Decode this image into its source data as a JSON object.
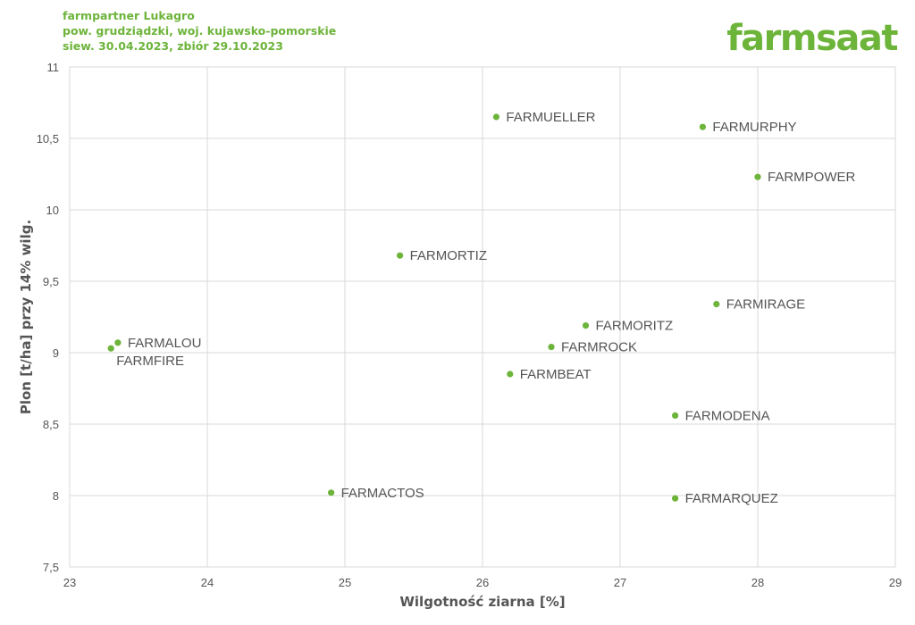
{
  "header": {
    "line1": "farmpartner Lukagro",
    "line2": "pow. grudziądzki, woj. kujawsko-pomorskie",
    "line3": "siew. 30.04.2023, zbiór 29.10.2023"
  },
  "logo": {
    "text": "farmsaat"
  },
  "colors": {
    "accent": "#6db43a",
    "grid": "#d9d9d9",
    "text": "#555555"
  },
  "chart_data": {
    "type": "scatter",
    "title": "",
    "xlabel": "Wilgotność ziarna [%]",
    "ylabel": "Plon [t/ha] przy 14% wilg.",
    "xlim": [
      23,
      29
    ],
    "ylim": [
      7.5,
      11
    ],
    "x_ticks": [
      23,
      24,
      25,
      26,
      27,
      28,
      29
    ],
    "y_ticks": [
      7.5,
      8,
      8.5,
      9,
      9.5,
      10,
      10.5,
      11
    ],
    "x_tick_labels": [
      "23",
      "24",
      "25",
      "26",
      "27",
      "28",
      "29"
    ],
    "y_tick_labels": [
      "7,5",
      "8",
      "8,5",
      "9",
      "9,5",
      "10",
      "10,5",
      "11"
    ],
    "grid": true,
    "points": [
      {
        "label": "FARMUELLER",
        "x": 26.1,
        "y": 10.65
      },
      {
        "label": "FARMURPHY",
        "x": 27.6,
        "y": 10.58
      },
      {
        "label": "FARMPOWER",
        "x": 28.0,
        "y": 10.23
      },
      {
        "label": "FARMORTIZ",
        "x": 25.4,
        "y": 9.68
      },
      {
        "label": "FARMIRAGE",
        "x": 27.7,
        "y": 9.34
      },
      {
        "label": "FARMORITZ",
        "x": 26.75,
        "y": 9.19
      },
      {
        "label": "FARMROCK",
        "x": 26.5,
        "y": 9.04
      },
      {
        "label": "FARMALOU",
        "x": 23.35,
        "y": 9.07
      },
      {
        "label": "FARMFIRE",
        "x": 23.3,
        "y": 9.03
      },
      {
        "label": "FARMBEAT",
        "x": 26.2,
        "y": 8.85
      },
      {
        "label": "FARMODENA",
        "x": 27.4,
        "y": 8.56
      },
      {
        "label": "FARMACTOS",
        "x": 24.9,
        "y": 8.02
      },
      {
        "label": "FARMARQUEZ",
        "x": 27.4,
        "y": 7.98
      }
    ]
  }
}
